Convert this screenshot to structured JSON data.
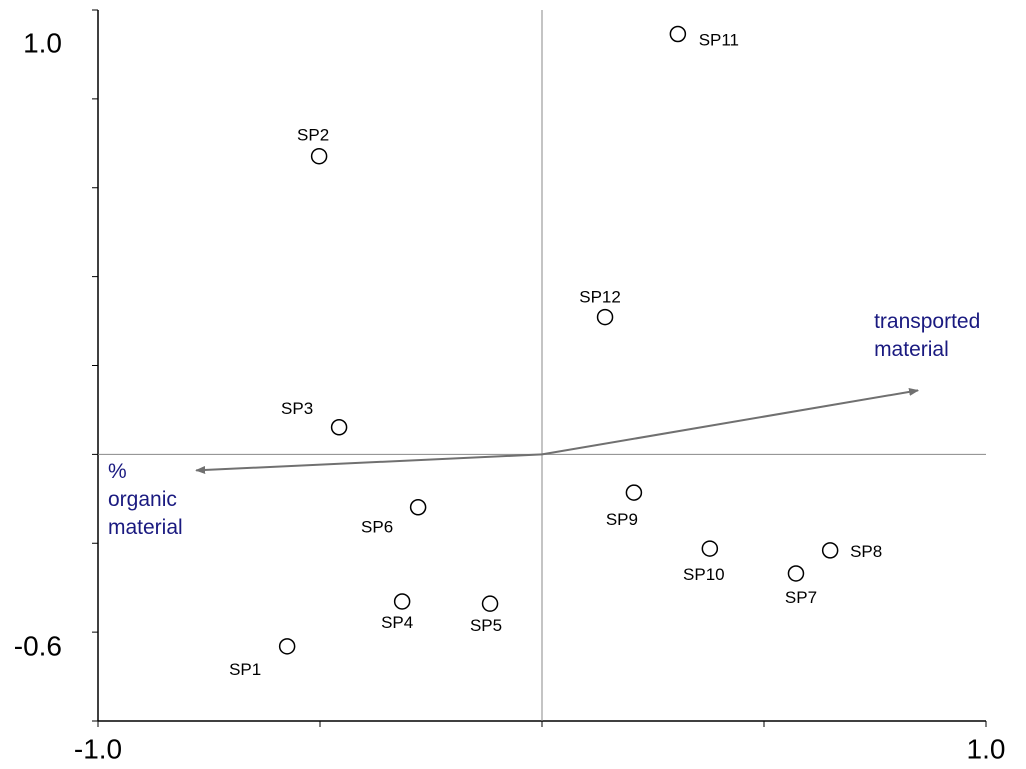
{
  "chart_data": {
    "type": "biplot",
    "xlim": [
      -1,
      1
    ],
    "ylim": [
      -0.6,
      1
    ],
    "xticks": [
      {
        "value": -1,
        "label": "-1.0"
      },
      {
        "value": 1,
        "label": "1.0"
      }
    ],
    "yticks": [
      {
        "value": -0.6,
        "label": "-0.6"
      },
      {
        "value": 1,
        "label": "1.0"
      }
    ],
    "xminor_ticks": [
      -0.5,
      0,
      0.5
    ],
    "yminor_ticks": [
      -0.4,
      -0.2,
      0,
      0.2,
      0.4,
      0.6,
      0.8
    ],
    "point_color": "#000000",
    "vector_color": "#707070",
    "vector_label_color": "#1a1a80",
    "points": [
      {
        "name": "SP1",
        "x": -0.574,
        "y": -0.432
      },
      {
        "name": "SP2",
        "x": -0.502,
        "y": 0.671
      },
      {
        "name": "SP3",
        "x": -0.457,
        "y": 0.061
      },
      {
        "name": "SP4",
        "x": -0.315,
        "y": -0.331
      },
      {
        "name": "SP5",
        "x": -0.117,
        "y": -0.336
      },
      {
        "name": "SP6",
        "x": -0.279,
        "y": -0.119
      },
      {
        "name": "SP7",
        "x": 0.572,
        "y": -0.268
      },
      {
        "name": "SP8",
        "x": 0.649,
        "y": -0.216
      },
      {
        "name": "SP9",
        "x": 0.207,
        "y": -0.086
      },
      {
        "name": "SP10",
        "x": 0.378,
        "y": -0.212
      },
      {
        "name": "SP11",
        "x": 0.306,
        "y": 0.946
      },
      {
        "name": "SP12",
        "x": 0.142,
        "y": 0.309
      }
    ],
    "vectors": [
      {
        "label_lines": [
          "transported",
          "material"
        ],
        "x": 0.847,
        "y": 0.144
      },
      {
        "label_lines": [
          "%",
          "organic",
          "material"
        ],
        "x": -0.779,
        "y": -0.036
      }
    ]
  }
}
